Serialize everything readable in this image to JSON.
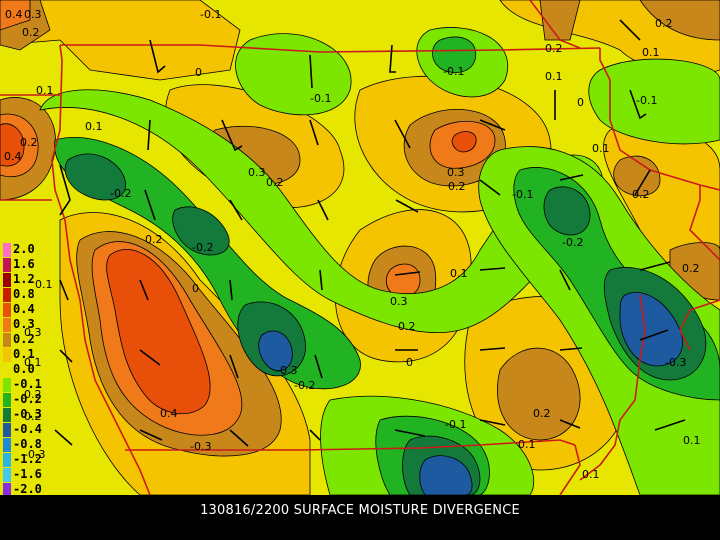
{
  "caption": "130816/2200 SURFACE MOISTURE DIVERGENCE",
  "legend": [
    {
      "label": "2.0",
      "color": "#ff6ec7"
    },
    {
      "label": "1.6",
      "color": "#c0135a"
    },
    {
      "label": "1.2",
      "color": "#9b0000"
    },
    {
      "label": "0.8",
      "color": "#c81e00"
    },
    {
      "label": "0.4",
      "color": "#e8500a"
    },
    {
      "label": "0.3",
      "color": "#f07a1a"
    },
    {
      "label": "0.2",
      "color": "#c8871a"
    },
    {
      "label": "0.1",
      "color": "#f5c400"
    },
    {
      "label": "0.0",
      "color": "#e6e600"
    },
    {
      "label": "-0.1",
      "color": "#7de600"
    },
    {
      "label": "-0.2",
      "color": "#21b321"
    },
    {
      "label": "-0.3",
      "color": "#137a3c"
    },
    {
      "label": "-0.4",
      "color": "#1e5aa0"
    },
    {
      "label": "-0.8",
      "color": "#1f8ad8"
    },
    {
      "label": "-1.2",
      "color": "#2bb5e6"
    },
    {
      "label": "-1.6",
      "color": "#45c8f0"
    },
    {
      "label": "-2.0",
      "color": "#8a2be2"
    }
  ],
  "contour_labels": [
    "0.4",
    "0.3",
    "0.2",
    "-0.1",
    "0.2",
    "0.2",
    "-0.1",
    "0.1",
    "0",
    "0.1",
    "0",
    "-0.1",
    "0.1",
    "0.2",
    "0.4",
    "0.1",
    "-0.1",
    "0.3",
    "0.2",
    "0.3",
    "0.2",
    "0.1",
    "0.2",
    "-0.2",
    "0.2",
    "-0.1",
    "-0.2",
    "0.1",
    "0.2",
    "0.1",
    "0.3",
    "-0.2",
    "0",
    "0.3",
    "0.2",
    "0.1",
    "0.2",
    "-0.3",
    "0.4",
    "-0.3",
    "-0.2",
    "0",
    "-0.3",
    "0.2",
    "-0.1",
    "0.2",
    "0.1",
    "0.1",
    "-0.3",
    "0.1"
  ]
}
